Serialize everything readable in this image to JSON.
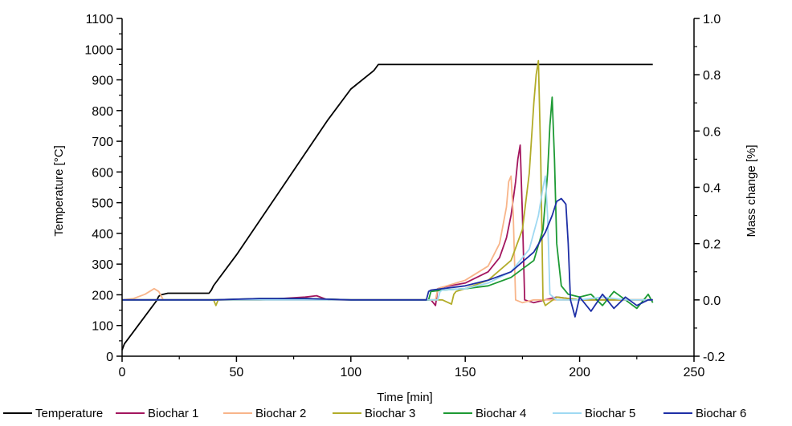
{
  "chart_data": {
    "type": "line",
    "title": "",
    "xlabel": "Time [min]",
    "ylabel": "Temperature [°C]",
    "y2label": "Mass change [%]",
    "xlim": [
      0,
      250
    ],
    "ylim": [
      0,
      1100
    ],
    "y2lim": [
      -0.2,
      1.0
    ],
    "xticks": [
      0,
      50,
      100,
      150,
      200,
      250
    ],
    "yticks": [
      0,
      100,
      200,
      300,
      400,
      500,
      600,
      700,
      800,
      900,
      1000,
      1100
    ],
    "y2ticks": [
      -0.2,
      0.0,
      0.2,
      0.4,
      0.6,
      0.8,
      1.0
    ],
    "y2ticklabels": [
      "-0.2",
      "0.0",
      "0.2",
      "0.4",
      "0.6",
      "0.8",
      "1.0"
    ],
    "grid": false,
    "legend_position": "bottom",
    "series": [
      {
        "name": "Temperature",
        "axis": "left",
        "color": "#000000",
        "x": [
          0,
          1,
          5,
          10,
          15,
          16,
          17,
          20,
          30,
          38,
          39,
          40,
          50,
          60,
          70,
          80,
          90,
          100,
          110,
          112,
          120,
          150,
          200,
          232
        ],
        "y": [
          20,
          40,
          80,
          130,
          180,
          195,
          200,
          205,
          205,
          205,
          215,
          230,
          330,
          440,
          550,
          660,
          770,
          870,
          930,
          950,
          950,
          950,
          950,
          950
        ]
      },
      {
        "name": "Biochar 1",
        "axis": "right",
        "color": "#a3165e",
        "x": [
          0,
          20,
          40,
          60,
          80,
          85,
          90,
          110,
          135,
          137,
          138,
          140,
          150,
          160,
          165,
          168,
          170,
          172,
          173,
          174,
          175,
          176,
          180,
          190,
          200,
          210,
          220,
          232
        ],
        "y": [
          0.0,
          0.0,
          0.0,
          0.0,
          0.01,
          0.015,
          0.0,
          0.0,
          0.0,
          -0.02,
          0.04,
          0.045,
          0.06,
          0.1,
          0.15,
          0.22,
          0.3,
          0.42,
          0.5,
          0.55,
          0.3,
          0.0,
          -0.01,
          0.01,
          0.0,
          0.0,
          0.0,
          0.0
        ]
      },
      {
        "name": "Biochar 2",
        "axis": "right",
        "color": "#f8b58a",
        "x": [
          0,
          5,
          10,
          14,
          16,
          18,
          25,
          40,
          60,
          80,
          100,
          130,
          137,
          138,
          140,
          150,
          160,
          165,
          168,
          169,
          170,
          171,
          172,
          175,
          180,
          190,
          200,
          210,
          220,
          232
        ],
        "y": [
          0.0,
          0.005,
          0.02,
          0.04,
          0.03,
          0.0,
          0.0,
          0.0,
          0.0,
          0.0,
          0.0,
          0.0,
          0.0,
          0.04,
          0.045,
          0.07,
          0.12,
          0.2,
          0.33,
          0.42,
          0.44,
          0.3,
          0.0,
          -0.01,
          0.0,
          0.0,
          0.0,
          0.0,
          0.0,
          0.0
        ]
      },
      {
        "name": "Biochar 3",
        "axis": "right",
        "color": "#b2ac29",
        "x": [
          0,
          20,
          40,
          41,
          42,
          60,
          80,
          100,
          140,
          144,
          145,
          146,
          150,
          160,
          170,
          175,
          178,
          180,
          181,
          182,
          183,
          184,
          185,
          190,
          200,
          210,
          220,
          232
        ],
        "y": [
          0.0,
          0.0,
          0.0,
          -0.02,
          0.0,
          0.0,
          0.005,
          0.0,
          0.0,
          -0.015,
          0.02,
          0.03,
          0.04,
          0.07,
          0.14,
          0.25,
          0.45,
          0.7,
          0.8,
          0.85,
          0.5,
          0.0,
          -0.02,
          0.01,
          0.0,
          0.0,
          0.0,
          0.0
        ]
      },
      {
        "name": "Biochar 4",
        "axis": "right",
        "color": "#1d9a34",
        "x": [
          0,
          20,
          40,
          60,
          80,
          100,
          134,
          135,
          140,
          150,
          160,
          170,
          180,
          184,
          186,
          187,
          188,
          189,
          190,
          192,
          195,
          200,
          205,
          210,
          215,
          220,
          225,
          230,
          232
        ],
        "y": [
          0.0,
          0.0,
          0.0,
          0.005,
          0.005,
          0.0,
          0.0,
          0.03,
          0.035,
          0.04,
          0.05,
          0.08,
          0.14,
          0.25,
          0.45,
          0.62,
          0.72,
          0.5,
          0.2,
          0.05,
          0.02,
          0.01,
          0.02,
          -0.02,
          0.03,
          0.0,
          -0.03,
          0.02,
          -0.01
        ]
      },
      {
        "name": "Biochar 5",
        "axis": "right",
        "color": "#9fd9f2",
        "x": [
          0,
          20,
          40,
          60,
          80,
          100,
          138,
          139,
          140,
          150,
          160,
          170,
          178,
          182,
          184,
          185,
          186,
          187,
          190,
          200,
          210,
          220,
          232
        ],
        "y": [
          0.0,
          0.0,
          0.0,
          0.0,
          0.0,
          0.0,
          0.0,
          0.03,
          0.035,
          0.04,
          0.06,
          0.1,
          0.18,
          0.3,
          0.4,
          0.44,
          0.3,
          0.02,
          0.0,
          0.0,
          0.01,
          0.0,
          0.0
        ]
      },
      {
        "name": "Biochar 6",
        "axis": "right",
        "color": "#1e2fa6",
        "x": [
          0,
          20,
          40,
          60,
          80,
          100,
          133,
          134,
          135,
          140,
          150,
          160,
          170,
          180,
          185,
          188,
          190,
          192,
          193,
          194,
          195,
          196,
          198,
          200,
          205,
          210,
          215,
          220,
          225,
          230,
          232
        ],
        "y": [
          0.0,
          0.0,
          0.0,
          0.005,
          0.005,
          0.0,
          0.0,
          0.03,
          0.035,
          0.04,
          0.05,
          0.07,
          0.1,
          0.17,
          0.24,
          0.3,
          0.35,
          0.36,
          0.35,
          0.34,
          0.2,
          0.0,
          -0.06,
          0.01,
          -0.04,
          0.02,
          -0.03,
          0.01,
          -0.02,
          0.0,
          0.0
        ]
      }
    ]
  }
}
